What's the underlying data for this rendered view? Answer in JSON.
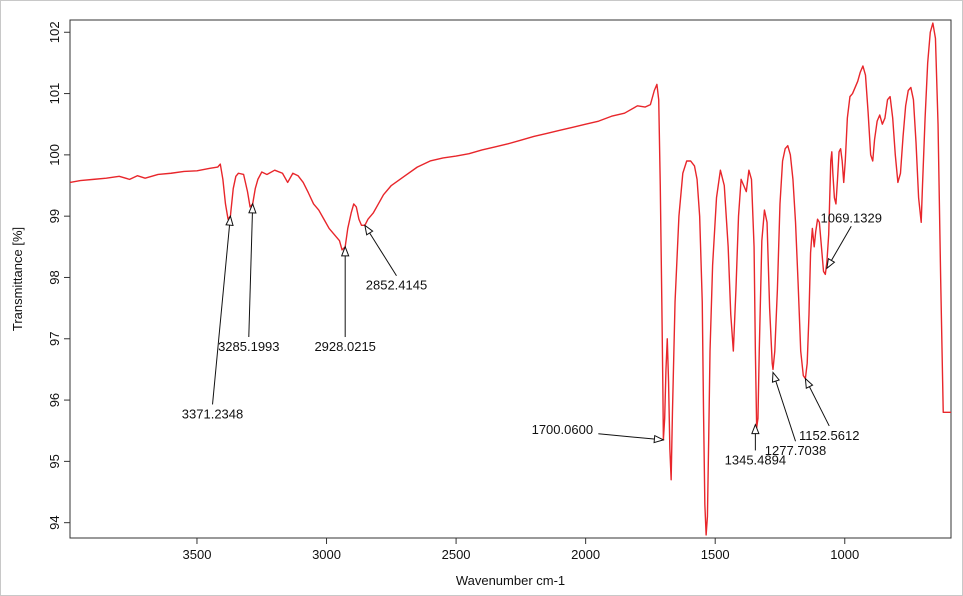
{
  "chart_data": {
    "type": "line",
    "title": "",
    "xlabel": "Wavenumber cm-1",
    "ylabel": "Transmittance [%]",
    "xlim": [
      3990,
      590
    ],
    "ylim": [
      93.75,
      102.2
    ],
    "x_reversed": true,
    "grid": false,
    "legend": "none",
    "xticks": [
      3500,
      3000,
      2500,
      2000,
      1500,
      1000
    ],
    "yticks": [
      94,
      95,
      96,
      97,
      98,
      99,
      100,
      101,
      102
    ],
    "series": [
      {
        "color": "#e8262b",
        "x": [
          3990,
          3950,
          3900,
          3850,
          3800,
          3760,
          3730,
          3700,
          3650,
          3600,
          3550,
          3500,
          3450,
          3420,
          3410,
          3400,
          3390,
          3380,
          3371,
          3360,
          3350,
          3340,
          3320,
          3305,
          3295,
          3285,
          3275,
          3265,
          3250,
          3230,
          3200,
          3170,
          3150,
          3130,
          3110,
          3090,
          3070,
          3050,
          3030,
          3010,
          2990,
          2970,
          2950,
          2940,
          2928,
          2918,
          2905,
          2895,
          2885,
          2875,
          2865,
          2852,
          2840,
          2820,
          2800,
          2780,
          2750,
          2700,
          2650,
          2600,
          2550,
          2500,
          2450,
          2400,
          2350,
          2300,
          2250,
          2200,
          2150,
          2100,
          2050,
          2000,
          1950,
          1900,
          1850,
          1800,
          1770,
          1750,
          1735,
          1725,
          1718,
          1712,
          1706,
          1702,
          1700,
          1695,
          1690,
          1685,
          1680,
          1675,
          1670,
          1665,
          1655,
          1640,
          1625,
          1610,
          1595,
          1580,
          1570,
          1560,
          1550,
          1545,
          1540,
          1535,
          1530,
          1525,
          1520,
          1510,
          1495,
          1480,
          1465,
          1450,
          1440,
          1430,
          1420,
          1410,
          1400,
          1390,
          1380,
          1370,
          1360,
          1350,
          1345,
          1340,
          1335,
          1330,
          1320,
          1310,
          1300,
          1290,
          1280,
          1277,
          1270,
          1260,
          1250,
          1240,
          1230,
          1220,
          1210,
          1200,
          1190,
          1180,
          1170,
          1160,
          1152,
          1145,
          1138,
          1132,
          1125,
          1118,
          1112,
          1105,
          1098,
          1090,
          1082,
          1075,
          1069,
          1062,
          1058,
          1054,
          1050,
          1046,
          1040,
          1034,
          1028,
          1022,
          1016,
          1010,
          1004,
          998,
          990,
          980,
          970,
          960,
          950,
          940,
          930,
          920,
          910,
          900,
          892,
          885,
          875,
          865,
          855,
          845,
          835,
          825,
          815,
          805,
          795,
          785,
          775,
          765,
          755,
          745,
          735,
          725,
          715,
          705,
          700,
          690,
          680,
          670,
          660,
          650,
          640,
          630,
          620,
          610,
          600,
          590
        ],
        "y": [
          99.55,
          99.58,
          99.6,
          99.62,
          99.65,
          99.6,
          99.66,
          99.62,
          99.68,
          99.7,
          99.73,
          99.74,
          99.78,
          99.8,
          99.85,
          99.6,
          99.2,
          98.95,
          99.0,
          99.45,
          99.65,
          99.7,
          99.68,
          99.4,
          99.15,
          99.2,
          99.45,
          99.6,
          99.72,
          99.68,
          99.75,
          99.7,
          99.55,
          99.7,
          99.66,
          99.55,
          99.38,
          99.2,
          99.1,
          98.95,
          98.8,
          98.7,
          98.6,
          98.45,
          98.5,
          98.8,
          99.05,
          99.2,
          99.15,
          98.95,
          98.85,
          98.85,
          98.95,
          99.05,
          99.2,
          99.35,
          99.5,
          99.65,
          99.8,
          99.9,
          99.95,
          99.98,
          100.02,
          100.08,
          100.13,
          100.18,
          100.24,
          100.3,
          100.35,
          100.4,
          100.45,
          100.5,
          100.55,
          100.63,
          100.68,
          100.8,
          100.78,
          100.82,
          101.05,
          101.15,
          100.9,
          99.5,
          97.6,
          96.2,
          95.35,
          95.7,
          96.5,
          97.0,
          96.3,
          95.2,
          94.7,
          95.8,
          97.6,
          99.0,
          99.7,
          99.9,
          99.9,
          99.82,
          99.6,
          99.0,
          97.6,
          95.8,
          94.3,
          93.8,
          94.1,
          95.4,
          96.8,
          98.2,
          99.3,
          99.75,
          99.5,
          98.5,
          97.4,
          96.8,
          97.8,
          99.0,
          99.6,
          99.5,
          99.4,
          99.75,
          99.6,
          98.5,
          96.8,
          95.55,
          95.7,
          96.8,
          98.6,
          99.1,
          98.9,
          97.5,
          96.6,
          96.5,
          96.8,
          97.8,
          99.2,
          99.9,
          100.1,
          100.15,
          100.0,
          99.6,
          98.9,
          97.9,
          96.8,
          96.4,
          96.35,
          96.6,
          97.4,
          98.4,
          98.8,
          98.5,
          98.75,
          98.95,
          98.9,
          98.5,
          98.1,
          98.05,
          98.25,
          98.7,
          99.3,
          99.9,
          100.05,
          99.7,
          99.3,
          99.2,
          99.6,
          100.05,
          100.1,
          99.9,
          99.55,
          99.9,
          100.6,
          100.95,
          101.0,
          101.1,
          101.2,
          101.35,
          101.45,
          101.3,
          100.7,
          100.0,
          99.9,
          100.25,
          100.55,
          100.65,
          100.5,
          100.6,
          100.9,
          100.95,
          100.6,
          100.0,
          99.55,
          99.7,
          100.3,
          100.8,
          101.05,
          101.1,
          100.9,
          100.2,
          99.3,
          98.9,
          99.5,
          100.6,
          101.5,
          102.0,
          102.15,
          101.9,
          100.5,
          98.0,
          95.8,
          95.8,
          95.8,
          95.8
        ]
      }
    ],
    "annotations": [
      {
        "label": "3371.2348",
        "x": 3371,
        "y": 99.0,
        "text_x": 3440,
        "text_y": 95.7
      },
      {
        "label": "3285.1993",
        "x": 3285,
        "y": 99.2,
        "text_x": 3300,
        "text_y": 96.8
      },
      {
        "label": "2928.0215",
        "x": 2928,
        "y": 98.5,
        "text_x": 2928,
        "text_y": 96.8
      },
      {
        "label": "2852.4145",
        "x": 2852,
        "y": 98.85,
        "text_x": 2730,
        "text_y": 97.8
      },
      {
        "label": "1700.0600",
        "x": 1700,
        "y": 95.35,
        "text_x": 2090,
        "text_y": 95.45
      },
      {
        "label": "1345.4894",
        "x": 1345,
        "y": 95.6,
        "text_x": 1345,
        "text_y": 94.95
      },
      {
        "label": "1277.7038",
        "x": 1277,
        "y": 96.45,
        "text_x": 1190,
        "text_y": 95.1
      },
      {
        "label": "1152.5612",
        "x": 1152,
        "y": 96.35,
        "text_x": 1060,
        "text_y": 95.35
      },
      {
        "label": "1069.1329",
        "x": 1069,
        "y": 98.15,
        "text_x": 975,
        "text_y": 98.9
      }
    ]
  }
}
